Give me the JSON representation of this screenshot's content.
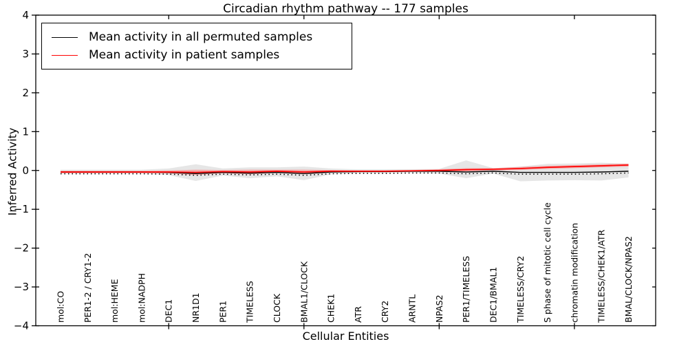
{
  "title": "Circadian rhythm pathway -- 177 samples",
  "legend": {
    "entries": [
      {
        "label": "Mean activity in all permuted samples",
        "color": "#000000"
      },
      {
        "label": "Mean activity in patient samples",
        "color": "#ff0000"
      }
    ]
  },
  "axes": {
    "ylabel": "Inferred Activity",
    "xlabel": "Cellular Entities",
    "ytick_labels": [
      "4",
      "3",
      "2",
      "1",
      "0",
      "−1",
      "−2",
      "−3",
      "−4"
    ],
    "ytick_values": [
      4,
      3,
      2,
      1,
      0,
      -1,
      -2,
      -3,
      -4
    ]
  },
  "chart_data": {
    "type": "line",
    "title": "Circadian rhythm pathway -- 177 samples",
    "xlabel": "Cellular Entities",
    "ylabel": "Inferred Activity",
    "ylim": [
      -4,
      4
    ],
    "grid": false,
    "legend_position": "upper left",
    "categories": [
      "mol:CO",
      "PER1-2 / CRY1-2",
      "mol:HEME",
      "mol:NADPH",
      "DEC1",
      "NR1D1",
      "PER1",
      "TIMELESS",
      "CLOCK",
      "BMAL1/CLOCK",
      "CHEK1",
      "ATR",
      "CRY2",
      "ARNTL",
      "NPAS2",
      "PER1/TIMELESS",
      "DEC1/BMAL1",
      "TIMELESS/CRY2",
      "S phase of mitotic cell cycle",
      "chromatin modification",
      "TIMELESS/CHEK1/ATR",
      "BMAL/CLOCK/NPAS2"
    ],
    "major_tick_indices": [
      4,
      9,
      14,
      19
    ],
    "series": [
      {
        "name": "Mean activity in all permuted samples",
        "color": "#000000",
        "values": [
          -0.04,
          -0.04,
          -0.04,
          -0.04,
          -0.05,
          -0.08,
          -0.05,
          -0.07,
          -0.05,
          -0.08,
          -0.04,
          -0.03,
          -0.03,
          -0.02,
          -0.02,
          -0.04,
          -0.02,
          -0.05,
          -0.05,
          -0.05,
          -0.04,
          -0.02
        ]
      },
      {
        "name": "Mean activity in patient samples",
        "color": "#ff0000",
        "values": [
          -0.04,
          -0.04,
          -0.04,
          -0.04,
          -0.04,
          -0.05,
          -0.03,
          -0.04,
          -0.02,
          -0.04,
          -0.02,
          -0.02,
          -0.02,
          -0.01,
          0.0,
          0.02,
          0.03,
          0.05,
          0.08,
          0.1,
          0.12,
          0.14
        ]
      }
    ],
    "permuted_band": {
      "color": "#d9d9d9",
      "upper": [
        0.02,
        0.02,
        0.02,
        0.02,
        0.05,
        0.16,
        0.05,
        0.08,
        0.08,
        0.1,
        0.05,
        0.03,
        0.03,
        0.03,
        0.04,
        0.26,
        0.06,
        0.1,
        0.17,
        0.18,
        0.2,
        0.17
      ],
      "lower": [
        -0.08,
        -0.08,
        -0.08,
        -0.08,
        -0.12,
        -0.27,
        -0.13,
        -0.2,
        -0.15,
        -0.25,
        -0.1,
        -0.07,
        -0.07,
        -0.06,
        -0.08,
        -0.2,
        -0.08,
        -0.28,
        -0.26,
        -0.25,
        -0.26,
        -0.18
      ]
    },
    "patient_band": {
      "color": "#ff6666",
      "upper": [
        -0.01,
        -0.01,
        -0.01,
        -0.01,
        0.0,
        0.02,
        0.01,
        0.02,
        0.02,
        0.02,
        0.01,
        0.0,
        0.0,
        0.01,
        0.03,
        0.06,
        0.06,
        0.09,
        0.12,
        0.14,
        0.16,
        0.18
      ],
      "lower": [
        -0.07,
        -0.07,
        -0.07,
        -0.07,
        -0.08,
        -0.12,
        -0.07,
        -0.1,
        -0.06,
        -0.1,
        -0.05,
        -0.04,
        -0.04,
        -0.03,
        -0.03,
        -0.02,
        0.0,
        0.01,
        0.04,
        0.06,
        0.08,
        0.1
      ]
    }
  }
}
